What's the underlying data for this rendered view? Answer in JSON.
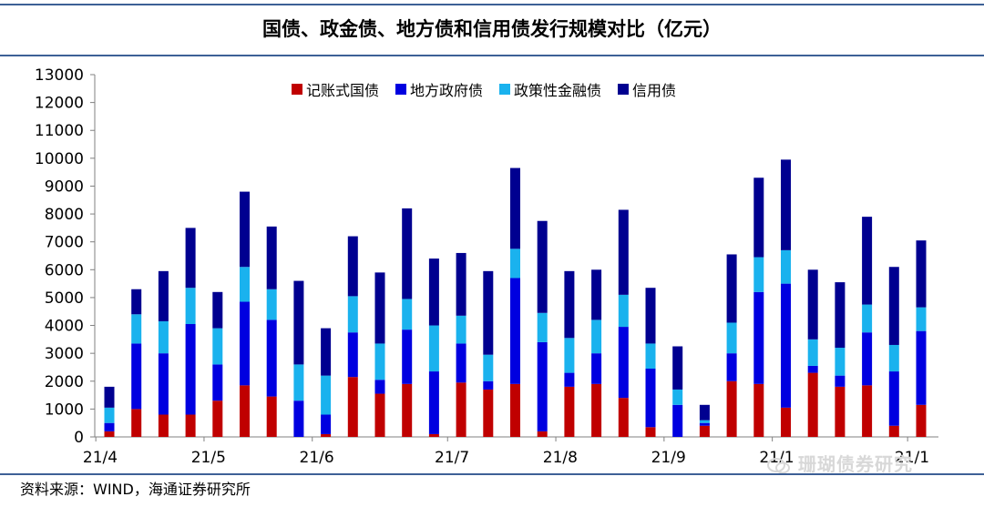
{
  "header": {
    "title": "国债、政金债、地方债和信用债发行规模对比（亿元）"
  },
  "footer": {
    "source": "资料来源：WIND，海通证券研究所",
    "watermark": "珊瑚债券研究"
  },
  "chart_data": {
    "type": "bar",
    "stacked": true,
    "title": "国债、政金债、地方债和信用债发行规模对比（亿元）",
    "xlabel": "",
    "ylabel": "",
    "ylim": [
      0,
      13000
    ],
    "yticks": [
      0,
      1000,
      2000,
      3000,
      4000,
      5000,
      6000,
      7000,
      8000,
      9000,
      10000,
      11000,
      12000,
      13000
    ],
    "xtick_labels": [
      {
        "index": 0,
        "label": "21/4"
      },
      {
        "index": 4,
        "label": "21/5"
      },
      {
        "index": 8,
        "label": "21/6"
      },
      {
        "index": 13,
        "label": "21/7"
      },
      {
        "index": 17,
        "label": "21/8"
      },
      {
        "index": 21,
        "label": "21/9"
      },
      {
        "index": 25,
        "label": "21/1"
      },
      {
        "index": 30,
        "label": "21/1"
      }
    ],
    "legend_position": "top",
    "series": [
      {
        "name": "记账式国债",
        "color": "#c00000",
        "values": [
          200,
          1000,
          800,
          800,
          1300,
          1850,
          1450,
          0,
          100,
          2150,
          1550,
          1900,
          100,
          1950,
          1700,
          1900,
          200,
          1800,
          1900,
          1400,
          350,
          0,
          400,
          2000,
          1900,
          1050,
          2300,
          1800,
          1850,
          400,
          1150
        ]
      },
      {
        "name": "地方政府债",
        "color": "#0000e0",
        "values": [
          300,
          2350,
          2200,
          3250,
          1300,
          3000,
          2750,
          1300,
          700,
          1600,
          500,
          1950,
          2250,
          1400,
          300,
          3800,
          3200,
          500,
          1100,
          2550,
          2100,
          1150,
          100,
          1000,
          3300,
          4450,
          250,
          400,
          1900,
          1950,
          2650
        ]
      },
      {
        "name": "政策性金融债",
        "color": "#1ab2ee",
        "values": [
          550,
          1050,
          1150,
          1300,
          1300,
          1250,
          1100,
          1300,
          1400,
          1300,
          1300,
          1100,
          1650,
          1000,
          950,
          1050,
          1050,
          1250,
          1200,
          1150,
          900,
          550,
          100,
          1100,
          1250,
          1200,
          950,
          1000,
          1000,
          950,
          850
        ]
      },
      {
        "name": "信用债",
        "color": "#000090",
        "values": [
          750,
          900,
          1800,
          2150,
          1300,
          2700,
          2250,
          3000,
          1700,
          2150,
          2550,
          3250,
          2400,
          2250,
          3000,
          2900,
          3300,
          2400,
          1800,
          3050,
          2000,
          1550,
          550,
          2450,
          2850,
          3250,
          2500,
          2350,
          3150,
          2800,
          2400
        ]
      }
    ]
  }
}
